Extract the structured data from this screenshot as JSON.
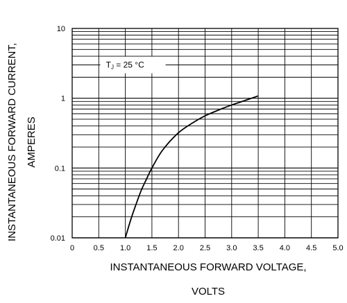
{
  "chart_data": {
    "type": "line",
    "xlabel_line1": "INSTANTANEOUS FORWARD VOLTAGE,",
    "xlabel_line2": "VOLTS",
    "ylabel_line1": "INSTANTANEOUS FORWARD CURRENT,",
    "ylabel_line2": "AMPERES",
    "xlim": [
      0,
      5.0
    ],
    "ylim": [
      0.01,
      10
    ],
    "y_scale": "log",
    "grid": true,
    "x_ticks": [
      "0",
      "0.5",
      "1.0",
      "1.5",
      "2.0",
      "2.5",
      "3.0",
      "3.5",
      "4.0",
      "4.5",
      "5.0"
    ],
    "y_ticks": [
      "0.01",
      "0.1",
      "1",
      "10"
    ],
    "annotation": {
      "text_main": "T",
      "text_sub": "J",
      "text_rest": " = 25 °C",
      "x": 1.0,
      "y": 3.0
    },
    "series": [
      {
        "x": [
          1.0,
          1.1,
          1.2,
          1.3,
          1.4,
          1.5,
          1.7,
          2.0,
          2.3,
          2.5,
          2.8,
          3.0,
          3.2,
          3.5
        ],
        "y": [
          0.01,
          0.018,
          0.03,
          0.048,
          0.07,
          0.1,
          0.18,
          0.32,
          0.46,
          0.56,
          0.7,
          0.8,
          0.9,
          1.08
        ]
      }
    ],
    "colors": {
      "line": "#000000",
      "grid": "#000000",
      "background": "#ffffff"
    }
  }
}
